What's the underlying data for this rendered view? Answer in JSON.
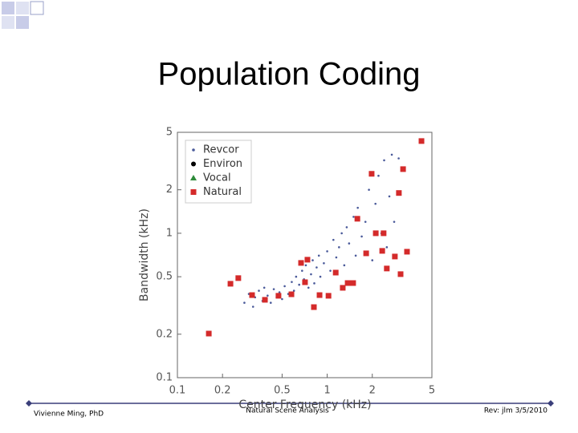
{
  "slide": {
    "title": "Population Coding",
    "footer": {
      "left": "Vivienne Ming, PhD",
      "center": "Natural Scene Analysis",
      "right": "Rev: jlm 3/5/2010"
    }
  },
  "chart_data": {
    "type": "scatter",
    "xlabel": "Center Frequency (kHz)",
    "ylabel": "Bandwidth (kHz)",
    "xscale": "log",
    "yscale": "log",
    "xlim": [
      0.1,
      5
    ],
    "ylim": [
      0.1,
      5
    ],
    "xticks": [
      0.1,
      0.2,
      0.5,
      1,
      2,
      5
    ],
    "yticks": [
      0.1,
      0.2,
      0.5,
      1,
      2,
      5
    ],
    "legend": "upper left",
    "series": [
      {
        "name": "Revcor",
        "color": "#4a5a9a",
        "marker": "dot",
        "x": [
          0.28,
          0.3,
          0.32,
          0.33,
          0.35,
          0.37,
          0.38,
          0.4,
          0.42,
          0.44,
          0.46,
          0.48,
          0.5,
          0.52,
          0.55,
          0.58,
          0.6,
          0.62,
          0.65,
          0.68,
          0.7,
          0.72,
          0.75,
          0.78,
          0.8,
          0.82,
          0.85,
          0.88,
          0.9,
          0.95,
          1.0,
          1.05,
          1.1,
          1.15,
          1.2,
          1.25,
          1.3,
          1.35,
          1.4,
          1.5,
          1.55,
          1.6,
          1.7,
          1.8,
          1.9,
          2.0,
          2.1,
          2.2,
          2.3,
          2.4,
          2.5,
          2.6,
          2.7,
          2.8,
          3.0
        ],
        "values": [
          0.33,
          0.38,
          0.31,
          0.36,
          0.4,
          0.34,
          0.42,
          0.37,
          0.33,
          0.41,
          0.36,
          0.39,
          0.35,
          0.43,
          0.38,
          0.46,
          0.4,
          0.5,
          0.44,
          0.55,
          0.48,
          0.6,
          0.42,
          0.52,
          0.65,
          0.45,
          0.58,
          0.7,
          0.5,
          0.62,
          0.75,
          0.55,
          0.9,
          0.68,
          0.8,
          1.0,
          0.6,
          1.1,
          0.85,
          1.3,
          0.7,
          1.5,
          0.95,
          1.2,
          2.0,
          0.65,
          1.6,
          2.5,
          1.0,
          3.2,
          0.8,
          1.8,
          3.5,
          1.2,
          3.3
        ]
      },
      {
        "name": "Environ",
        "color": "#000000",
        "marker": "circle",
        "x": [],
        "values": []
      },
      {
        "name": "Vocal",
        "color": "#2e8b3a",
        "marker": "triangle",
        "x": [],
        "values": []
      },
      {
        "name": "Natural",
        "color": "#d42a2a",
        "marker": "square",
        "x": [
          0.162,
          0.226,
          0.255,
          0.315,
          0.384,
          0.473,
          0.577,
          0.669,
          0.738,
          0.711,
          0.815,
          0.889,
          1.02,
          1.14,
          1.27,
          1.37,
          1.49,
          1.59,
          1.82,
          1.98,
          2.11,
          2.33,
          2.38,
          2.5,
          2.83,
          3.01,
          3.09,
          3.21,
          3.41,
          4.26
        ],
        "values": [
          0.202,
          0.447,
          0.489,
          0.373,
          0.346,
          0.369,
          0.378,
          0.623,
          0.656,
          0.458,
          0.308,
          0.373,
          0.369,
          0.534,
          0.419,
          0.452,
          0.452,
          1.26,
          0.726,
          2.58,
          1.0,
          0.755,
          1.0,
          0.57,
          0.69,
          1.9,
          0.521,
          2.78,
          0.745,
          4.35
        ]
      }
    ]
  }
}
